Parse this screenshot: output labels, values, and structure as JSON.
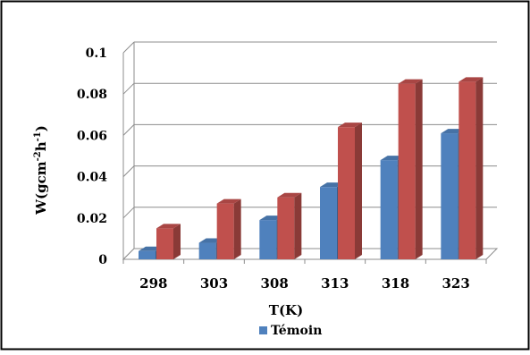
{
  "chart_data": {
    "type": "bar",
    "title": "",
    "xlabel": "T(K)",
    "ylabel": "W(gcm",
    "ylabel_sup1": "-2",
    "ylabel_mid": "h",
    "ylabel_sup2": "-1",
    "ylabel_end": ")",
    "categories": [
      "298",
      "303",
      "308",
      "313",
      "318",
      "323"
    ],
    "ylim": [
      0,
      0.1
    ],
    "yticks": [
      "0",
      "0.02",
      "0.04",
      "0.06",
      "0.08",
      "0.1"
    ],
    "grid": true,
    "legend_position": "bottom",
    "series": [
      {
        "name": "Témoin",
        "color": "#4f81bd",
        "values": [
          0.004,
          0.008,
          0.019,
          0.035,
          0.048,
          0.061
        ]
      },
      {
        "color": "#c0504d",
        "values": [
          0.015,
          0.027,
          0.03,
          0.064,
          0.085,
          0.086
        ]
      }
    ]
  }
}
